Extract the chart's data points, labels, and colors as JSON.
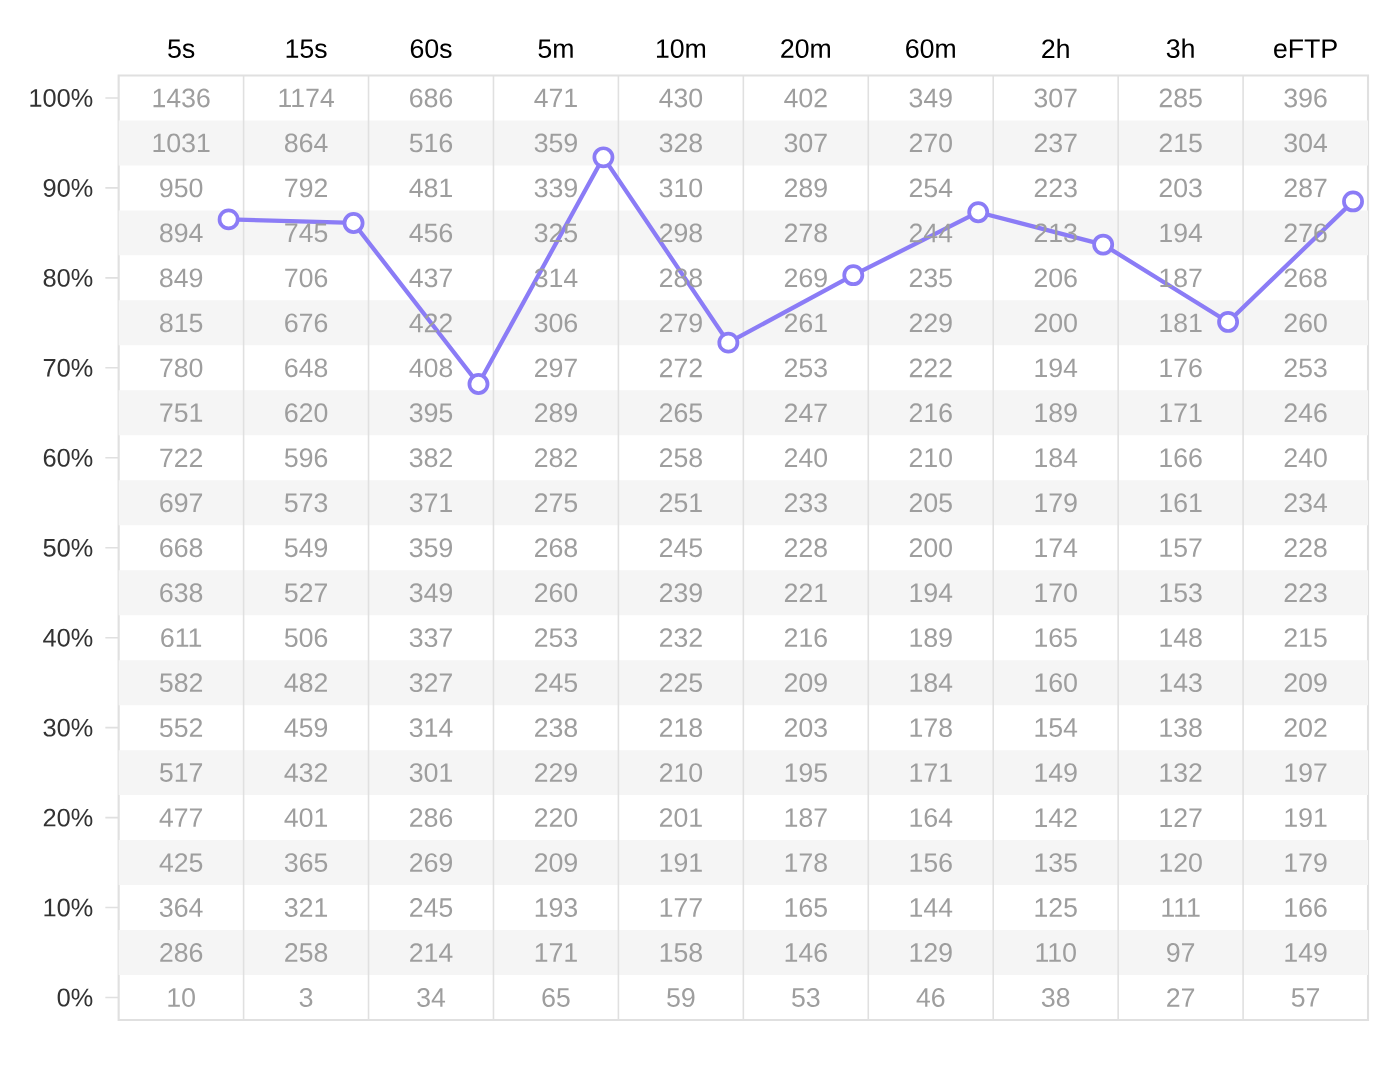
{
  "chart_data": {
    "type": "line",
    "categories": [
      "5s",
      "15s",
      "60s",
      "5m",
      "10m",
      "20m",
      "60m",
      "2h",
      "3h",
      "eFTP"
    ],
    "series": [
      {
        "color": "#8b7cf6",
        "values": [
          86.5,
          86.1,
          68.2,
          93.4,
          72.8,
          80.3,
          87.3,
          83.7,
          75.1,
          88.5
        ]
      }
    ],
    "ylim": [
      -2.5,
      102.5
    ],
    "yticks": [
      {
        "value": 0,
        "label": "0%"
      },
      {
        "value": 10,
        "label": "10%"
      },
      {
        "value": 20,
        "label": "20%"
      },
      {
        "value": 30,
        "label": "30%"
      },
      {
        "value": 40,
        "label": "40%"
      },
      {
        "value": 50,
        "label": "50%"
      },
      {
        "value": 60,
        "label": "60%"
      },
      {
        "value": 70,
        "label": "70%"
      },
      {
        "value": 80,
        "label": "80%"
      },
      {
        "value": 90,
        "label": "90%"
      },
      {
        "value": 100,
        "label": "100%"
      }
    ],
    "marker": "circle",
    "grid": "x",
    "bands": [
      {
        "axis": "y",
        "from": 92.5,
        "to": 97.5,
        "color": "#f5f5f5"
      },
      {
        "axis": "y",
        "from": 82.5,
        "to": 87.5,
        "color": "#f5f5f5"
      },
      {
        "axis": "y",
        "from": 72.5,
        "to": 77.5,
        "color": "#f5f5f5"
      },
      {
        "axis": "y",
        "from": 62.5,
        "to": 67.5,
        "color": "#f5f5f5"
      },
      {
        "axis": "y",
        "from": 52.5,
        "to": 57.5,
        "color": "#f5f5f5"
      },
      {
        "axis": "y",
        "from": 42.5,
        "to": 47.5,
        "color": "#f5f5f5"
      },
      {
        "axis": "y",
        "from": 32.5,
        "to": 37.5,
        "color": "#f5f5f5"
      },
      {
        "axis": "y",
        "from": 22.5,
        "to": 27.5,
        "color": "#f5f5f5"
      },
      {
        "axis": "y",
        "from": 12.5,
        "to": 17.5,
        "color": "#f5f5f5"
      },
      {
        "axis": "y",
        "from": 2.5,
        "to": 7.5,
        "color": "#f5f5f5"
      }
    ],
    "annotations": [
      "1436",
      "1031",
      "950",
      "894",
      "849",
      "815",
      "780",
      "751",
      "722",
      "697",
      "668",
      "638",
      "611",
      "582",
      "552",
      "517",
      "477",
      "425",
      "364",
      "286",
      "10",
      "1174",
      "864",
      "792",
      "745",
      "706",
      "676",
      "648",
      "620",
      "596",
      "573",
      "549",
      "527",
      "506",
      "482",
      "459",
      "432",
      "401",
      "365",
      "321",
      "258",
      "3",
      "686",
      "516",
      "481",
      "456",
      "437",
      "422",
      "408",
      "395",
      "382",
      "371",
      "359",
      "349",
      "337",
      "327",
      "314",
      "301",
      "286",
      "269",
      "245",
      "214",
      "34",
      "471",
      "359",
      "339",
      "325",
      "314",
      "306",
      "297",
      "289",
      "282",
      "275",
      "268",
      "260",
      "253",
      "245",
      "238",
      "229",
      "220",
      "209",
      "193",
      "171",
      "65",
      "430",
      "328",
      "310",
      "298",
      "288",
      "279",
      "272",
      "265",
      "258",
      "251",
      "245",
      "239",
      "232",
      "225",
      "218",
      "210",
      "201",
      "191",
      "177",
      "158",
      "59",
      "402",
      "307",
      "289",
      "278",
      "269",
      "261",
      "253",
      "247",
      "240",
      "233",
      "228",
      "221",
      "216",
      "209",
      "203",
      "195",
      "187",
      "178",
      "165",
      "146",
      "53",
      "349",
      "270",
      "254",
      "244",
      "235",
      "229",
      "222",
      "216",
      "210",
      "205",
      "200",
      "194",
      "189",
      "184",
      "178",
      "171",
      "164",
      "156",
      "144",
      "129",
      "46",
      "307",
      "237",
      "223",
      "213",
      "206",
      "200",
      "194",
      "189",
      "184",
      "179",
      "174",
      "170",
      "165",
      "160",
      "154",
      "149",
      "142",
      "135",
      "125",
      "110",
      "38",
      "285",
      "215",
      "203",
      "194",
      "187",
      "181",
      "176",
      "171",
      "166",
      "161",
      "157",
      "153",
      "148",
      "143",
      "138",
      "132",
      "127",
      "120",
      "111",
      "97",
      "27",
      "396",
      "304",
      "287",
      "276",
      "268",
      "260",
      "253",
      "246",
      "240",
      "234",
      "228",
      "223",
      "215",
      "209",
      "202",
      "197",
      "191",
      "179",
      "166",
      "149",
      "57"
    ]
  }
}
